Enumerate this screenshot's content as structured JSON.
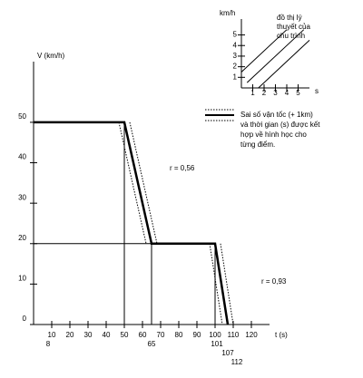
{
  "chart_data": [
    {
      "type": "line",
      "x_label": "t (s)",
      "y_label": "V (km/h)",
      "xlim": [
        0,
        130
      ],
      "ylim": [
        0,
        65
      ],
      "xticks": [
        10,
        20,
        30,
        40,
        50,
        60,
        70,
        80,
        90,
        100,
        110,
        120
      ],
      "yticks": [
        0,
        10,
        20,
        30,
        40,
        50
      ],
      "x_marks": [
        8,
        65,
        101,
        107,
        112
      ],
      "series": [
        {
          "color": "#000000",
          "style": "solid",
          "width": 1,
          "x": [
            0,
            50,
            50,
            null,
            0,
            100,
            100,
            null,
            65,
            65
          ],
          "values": [
            50,
            50,
            0,
            null,
            20,
            20,
            0,
            null,
            20,
            0
          ]
        },
        {
          "color": "#000000",
          "style": "dotted",
          "width": 1,
          "x": [
            47,
            62,
            null,
            97,
            104,
            null,
            53,
            68,
            null,
            103,
            110
          ],
          "values": [
            50,
            20,
            null,
            20,
            0,
            null,
            50,
            20,
            null,
            20,
            0
          ]
        },
        {
          "color": "#000000",
          "style": "solid",
          "width": 2.5,
          "x": [
            0,
            50,
            65,
            100,
            107
          ],
          "values": [
            50,
            50,
            20,
            20,
            0
          ]
        }
      ],
      "annotations": [
        "r = 0,56",
        "r = 0,93"
      ],
      "legend_text": [
        "Sai số vận tốc (+ 1km)",
        "và thời gian (s) được kết",
        "hợp về hình học cho",
        "từng điểm."
      ]
    },
    {
      "type": "line",
      "x_label": "s",
      "y_label": "km/h",
      "xlim": [
        0,
        6
      ],
      "ylim": [
        0,
        6.5
      ],
      "xticks": [
        1,
        2,
        3,
        4,
        5
      ],
      "yticks": [
        1,
        2,
        3,
        4,
        5
      ],
      "series": [
        {
          "color": "#000000",
          "style": "solid",
          "width": 1,
          "x": [
            0,
            4
          ],
          "values": [
            1.5,
            5.5
          ]
        },
        {
          "color": "#000000",
          "style": "solid",
          "width": 1,
          "x": [
            0.5,
            5.5
          ],
          "values": [
            0.5,
            5.5
          ]
        },
        {
          "color": "#000000",
          "style": "solid",
          "width": 1,
          "x": [
            1.5,
            6
          ],
          "values": [
            0,
            4.5
          ]
        }
      ],
      "note": [
        "đồ thị lý",
        "thuyết của",
        "chu trình"
      ]
    }
  ]
}
